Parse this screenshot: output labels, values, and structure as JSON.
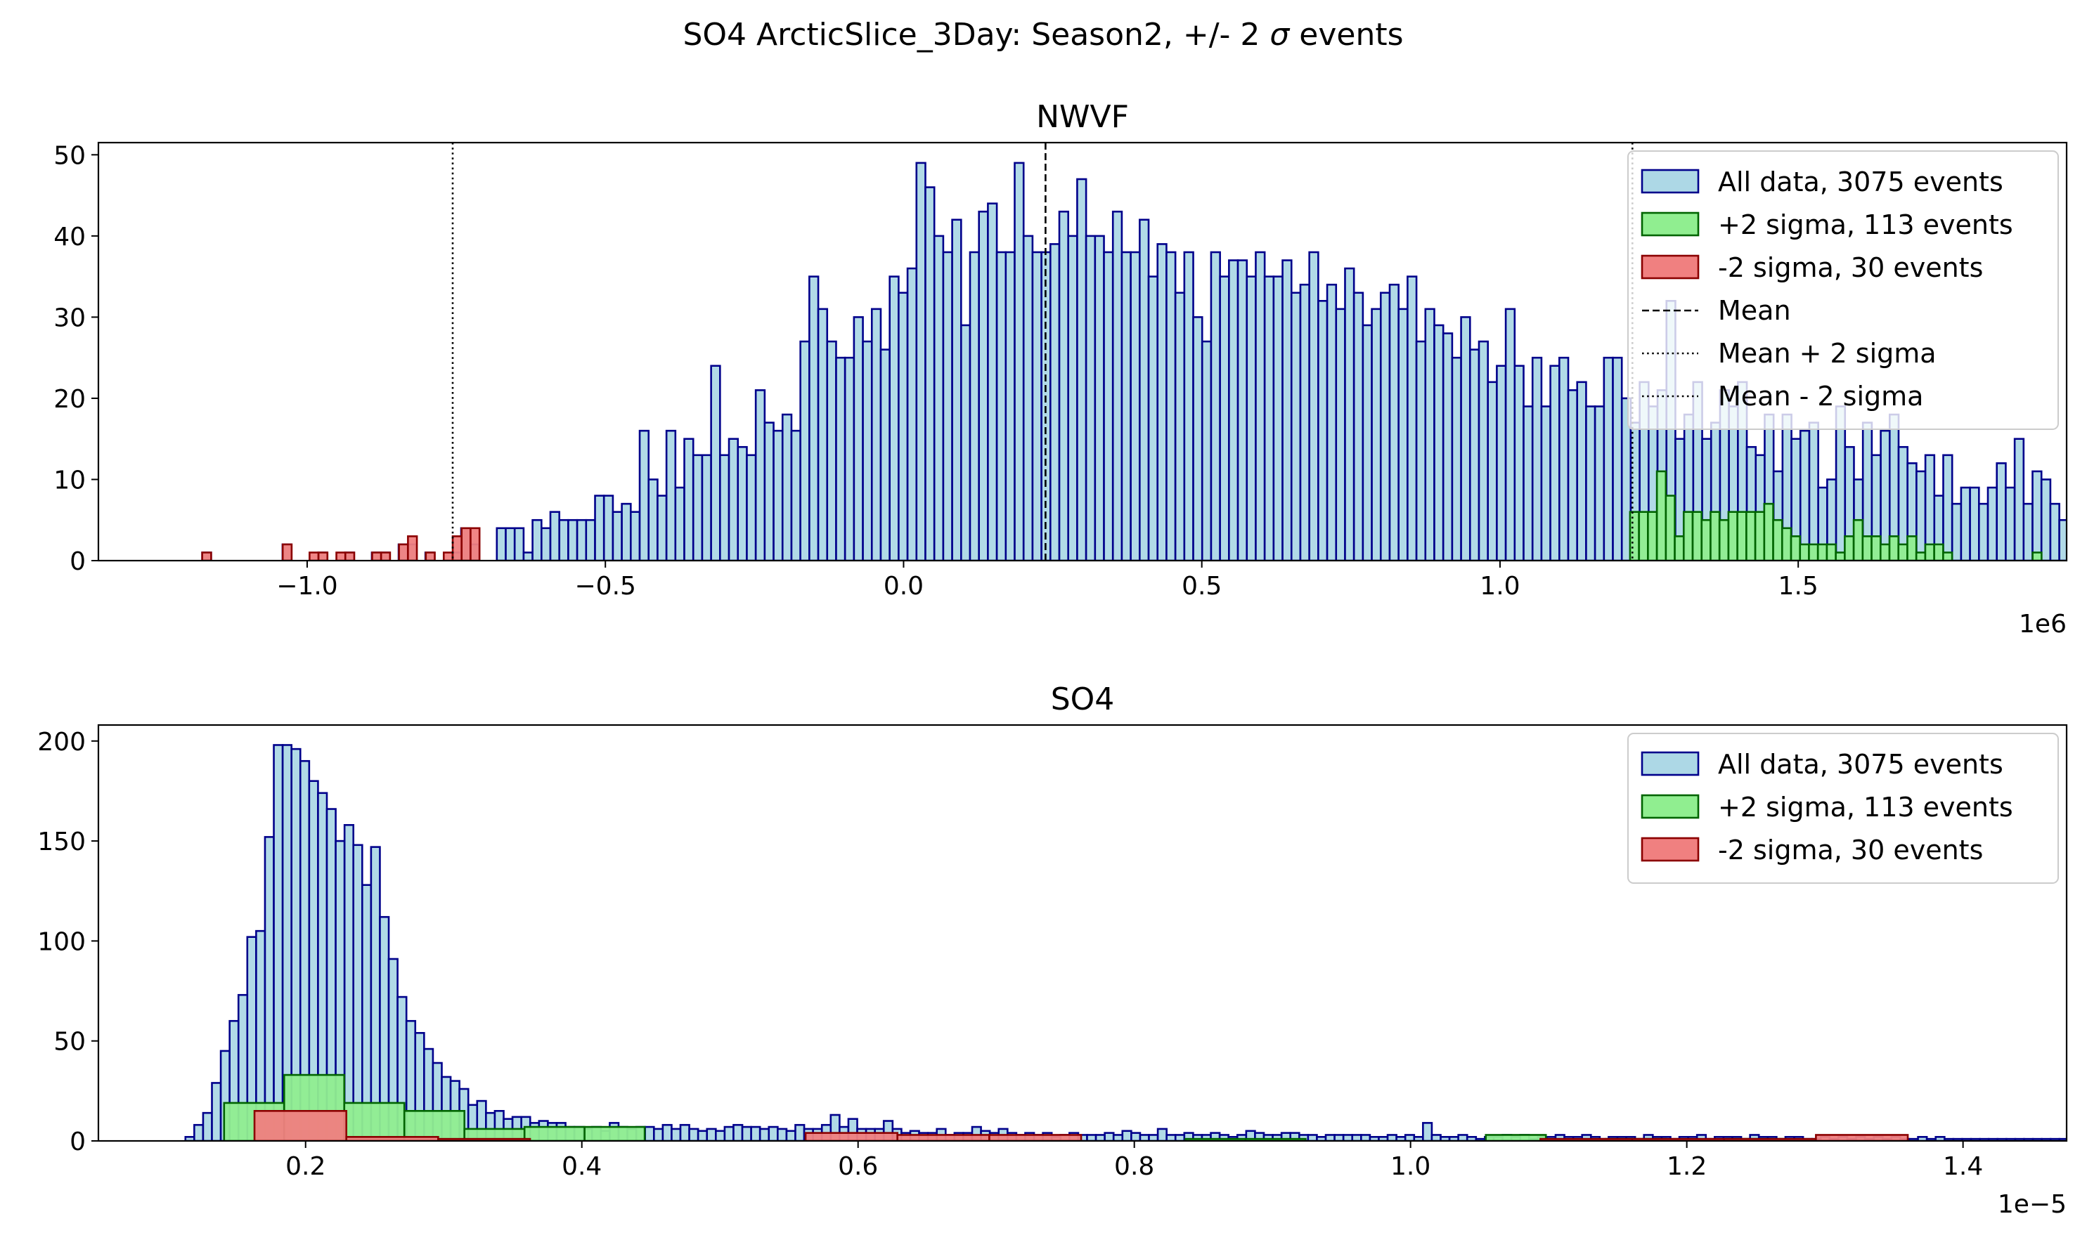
{
  "figure": {
    "suptitle_prefix": "SO4 ArcticSlice_3Day: Season2, +/- 2 ",
    "suptitle_symbol": "σ",
    "suptitle_suffix": " events"
  },
  "colors": {
    "all_face": "#add8e6",
    "all_edge": "#00008b",
    "plus_face": "#90ee90",
    "plus_edge": "#006400",
    "minus_face": "#f08080",
    "minus_edge": "#8b0000"
  },
  "chart_data": [
    {
      "type": "bar",
      "title": "NWVF",
      "offset_label": "1e6",
      "xlim": [
        -1.35,
        1.95
      ],
      "ylim": [
        0,
        51.5
      ],
      "xticks": [
        -1.0,
        -0.5,
        0.0,
        0.5,
        1.0,
        1.5
      ],
      "xtick_labels": [
        "−1.0",
        "−0.5",
        "0.0",
        "0.5",
        "1.0",
        "1.5"
      ],
      "yticks": [
        0,
        10,
        20,
        30,
        40,
        50
      ],
      "ytick_labels": [
        "0",
        "10",
        "20",
        "30",
        "40",
        "50"
      ],
      "legend_position": "upper right",
      "series": [
        {
          "name": "All data, 3075 events",
          "bin_width": 0.01497,
          "x_start": -1.176,
          "values": [
            1,
            0,
            0,
            0,
            0,
            0,
            0,
            0,
            0,
            2,
            0,
            0,
            0,
            1,
            0,
            0,
            1,
            0,
            0,
            1,
            1,
            0,
            2,
            2,
            0,
            1,
            0,
            0,
            1,
            4,
            2,
            0,
            0,
            4,
            4,
            4,
            1,
            5,
            4,
            6,
            5,
            5,
            5,
            5,
            8,
            8,
            6,
            7,
            6,
            16,
            10,
            8,
            16,
            9,
            15,
            13,
            13,
            24,
            13,
            15,
            14,
            13,
            21,
            17,
            16,
            18,
            16,
            27,
            35,
            31,
            27,
            25,
            25,
            30,
            27,
            31,
            26,
            35,
            33,
            36,
            49,
            46,
            40,
            38,
            42,
            29,
            38,
            43,
            44,
            38,
            38,
            49,
            40,
            38,
            38,
            39,
            43,
            40,
            47,
            40,
            40,
            38,
            43,
            38,
            38,
            42,
            35,
            39,
            38,
            33,
            38,
            30,
            27,
            38,
            35,
            37,
            37,
            35,
            38,
            35,
            35,
            37,
            33,
            34,
            38,
            32,
            34,
            31,
            36,
            33,
            29,
            31,
            33,
            34,
            31,
            35,
            27,
            31,
            29,
            28,
            25,
            30,
            26,
            27,
            22,
            24,
            31,
            24,
            19,
            25,
            19,
            24,
            25,
            21,
            22,
            19,
            19,
            25,
            25,
            20,
            17,
            22,
            19,
            21,
            32,
            15,
            18,
            22,
            15,
            17,
            21,
            19,
            22,
            14,
            13,
            18,
            11,
            18,
            15,
            16,
            17,
            9,
            10,
            19,
            14,
            10,
            17,
            13,
            16,
            18,
            14,
            12,
            11,
            13,
            8,
            13,
            7,
            9,
            9,
            7,
            9,
            12,
            9,
            15,
            7,
            11,
            10,
            7,
            5,
            6,
            5,
            0,
            0,
            0,
            0,
            0,
            0,
            0,
            0,
            0,
            0,
            0,
            0,
            0,
            0,
            0,
            0,
            0,
            0,
            0,
            0,
            0,
            0,
            0,
            0,
            0,
            0,
            0,
            0,
            0,
            0,
            0,
            0,
            0,
            0,
            0,
            0,
            0,
            0,
            0,
            0,
            0,
            0,
            0,
            0,
            0,
            0,
            0,
            0,
            0,
            0,
            0,
            0,
            0,
            0,
            0
          ]
        },
        {
          "name": "+2 sigma, 113 events",
          "bin_width": 0.015,
          "x_start": 1.218,
          "values": [
            6,
            6,
            6,
            11,
            8,
            3,
            6,
            6,
            5,
            6,
            5,
            6,
            6,
            6,
            6,
            7,
            5,
            4,
            3,
            2,
            2,
            2,
            2,
            1,
            3,
            5,
            3,
            3,
            2,
            3,
            2,
            3,
            1,
            2,
            2,
            1,
            0,
            0,
            0,
            0,
            0,
            0,
            0,
            0,
            0,
            1
          ]
        },
        {
          "name": "-2 sigma, 30 events",
          "bin_width": 0.015,
          "x_start": -1.176,
          "values": [
            1,
            0,
            0,
            0,
            0,
            0,
            0,
            0,
            0,
            2,
            0,
            0,
            1,
            1,
            0,
            1,
            1,
            0,
            0,
            1,
            1,
            0,
            2,
            3,
            0,
            1,
            0,
            1,
            3,
            4,
            4
          ]
        }
      ],
      "lines": [
        {
          "name": "Mean",
          "x": 0.238,
          "style": "dashed"
        },
        {
          "name": "Mean + 2 sigma",
          "x": 1.222,
          "style": "dotted"
        },
        {
          "name": "Mean - 2 sigma",
          "x": -0.756,
          "style": "dotted"
        }
      ]
    },
    {
      "type": "bar",
      "title": "SO4",
      "offset_label": "1e−5",
      "xlim": [
        0.05,
        1.475
      ],
      "ylim": [
        0,
        208
      ],
      "xticks": [
        0.2,
        0.4,
        0.6,
        0.8,
        1.0,
        1.2,
        1.4
      ],
      "xtick_labels": [
        "0.2",
        "0.4",
        "0.6",
        "0.8",
        "1.0",
        "1.2",
        "1.4"
      ],
      "yticks": [
        0,
        50,
        100,
        150,
        200
      ],
      "ytick_labels": [
        "0",
        "50",
        "100",
        "150",
        "200"
      ],
      "legend_position": "upper right",
      "series": [
        {
          "name": "All data, 3075 events",
          "bin_width": 0.0064,
          "x_start": 0.113,
          "values": [
            2,
            8,
            14,
            29,
            45,
            60,
            73,
            102,
            105,
            152,
            198,
            198,
            196,
            190,
            180,
            174,
            166,
            150,
            158,
            148,
            128,
            147,
            112,
            91,
            72,
            60,
            54,
            46,
            39,
            32,
            30,
            26,
            18,
            20,
            14,
            15,
            11,
            12,
            12,
            9,
            10,
            9,
            9,
            7,
            7,
            6,
            7,
            5,
            9,
            7,
            6,
            7,
            7,
            6,
            8,
            6,
            8,
            6,
            5,
            6,
            5,
            7,
            8,
            7,
            7,
            6,
            7,
            6,
            5,
            8,
            6,
            6,
            8,
            13,
            7,
            11,
            6,
            6,
            6,
            10,
            6,
            4,
            5,
            4,
            4,
            6,
            3,
            4,
            4,
            7,
            5,
            4,
            6,
            4,
            3,
            4,
            3,
            4,
            2,
            3,
            4,
            3,
            3,
            3,
            4,
            3,
            5,
            4,
            3,
            3,
            6,
            3,
            3,
            4,
            3,
            3,
            4,
            3,
            2,
            3,
            5,
            4,
            3,
            3,
            4,
            4,
            3,
            3,
            2,
            3,
            3,
            3,
            3,
            3,
            2,
            2,
            3,
            2,
            3,
            2,
            9,
            3,
            2,
            2,
            3,
            2,
            1,
            2,
            2,
            3,
            2,
            3,
            1,
            2,
            2,
            3,
            2,
            2,
            3,
            2,
            1,
            2,
            2,
            2,
            1,
            3,
            2,
            2,
            1,
            2,
            2,
            3,
            1,
            2,
            2,
            2,
            1,
            3,
            2,
            2,
            1,
            2,
            2,
            1,
            1,
            2,
            1,
            2,
            1,
            2,
            1,
            2,
            1,
            2,
            1,
            1,
            2,
            1,
            2,
            1,
            1,
            1,
            1,
            1,
            1,
            1,
            1,
            1,
            1,
            1,
            1,
            1,
            1,
            1,
            1,
            1,
            1,
            1,
            1,
            1
          ]
        },
        {
          "name": "+2 sigma, 113 events",
          "bin_width": 0.0435,
          "x_start": 0.141,
          "values": [
            19,
            33,
            19,
            15,
            6,
            7,
            7,
            0,
            0,
            0,
            0,
            0,
            0,
            0,
            0,
            0,
            1,
            1,
            0,
            0,
            0,
            3,
            0,
            1,
            0,
            1,
            0,
            0,
            0,
            0,
            0,
            0,
            0
          ]
        },
        {
          "name": "-2 sigma, 30 events",
          "bin_width": 0.0665,
          "x_start": 0.163,
          "values": [
            15,
            2,
            1,
            0,
            0,
            0,
            4,
            3,
            3,
            0,
            0,
            0,
            0,
            0,
            1,
            1,
            1,
            3,
            0
          ]
        }
      ]
    }
  ]
}
